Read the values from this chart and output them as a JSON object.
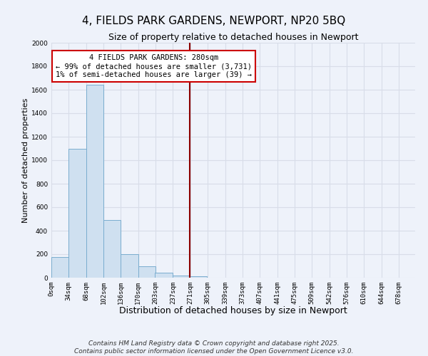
{
  "title": "4, FIELDS PARK GARDENS, NEWPORT, NP20 5BQ",
  "subtitle": "Size of property relative to detached houses in Newport",
  "xlabel": "Distribution of detached houses by size in Newport",
  "ylabel": "Number of detached properties",
  "bar_color": "#cfe0f0",
  "bar_edge_color": "#7aadcf",
  "background_color": "#eef2fa",
  "grid_color": "#d8dde8",
  "bins_start": [
    0,
    34,
    68,
    102,
    136,
    170,
    203,
    237,
    271,
    305,
    339,
    373,
    407,
    441,
    475,
    509,
    542,
    576,
    610,
    644
  ],
  "bin_width": 34,
  "bar_heights": [
    175,
    1095,
    1640,
    490,
    200,
    100,
    40,
    20,
    15,
    0,
    0,
    0,
    0,
    0,
    0,
    0,
    0,
    0,
    0,
    0
  ],
  "tick_labels": [
    "0sqm",
    "34sqm",
    "68sqm",
    "102sqm",
    "136sqm",
    "170sqm",
    "203sqm",
    "237sqm",
    "271sqm",
    "305sqm",
    "339sqm",
    "373sqm",
    "407sqm",
    "441sqm",
    "475sqm",
    "509sqm",
    "542sqm",
    "576sqm",
    "610sqm",
    "644sqm",
    "678sqm"
  ],
  "ylim": [
    0,
    2000
  ],
  "yticks": [
    0,
    200,
    400,
    600,
    800,
    1000,
    1200,
    1400,
    1600,
    1800,
    2000
  ],
  "xlim_max": 712,
  "vline_x": 271,
  "vline_color": "#8b0000",
  "annotation_text": "4 FIELDS PARK GARDENS: 280sqm\n← 99% of detached houses are smaller (3,731)\n1% of semi-detached houses are larger (39) →",
  "annotation_box_color": "#ffffff",
  "annotation_box_edge_color": "#cc0000",
  "footer_line1": "Contains HM Land Registry data © Crown copyright and database right 2025.",
  "footer_line2": "Contains public sector information licensed under the Open Government Licence v3.0.",
  "title_fontsize": 11,
  "subtitle_fontsize": 9,
  "xlabel_fontsize": 9,
  "ylabel_fontsize": 8,
  "tick_fontsize": 6.5,
  "annotation_fontsize": 7.5,
  "footer_fontsize": 6.5
}
